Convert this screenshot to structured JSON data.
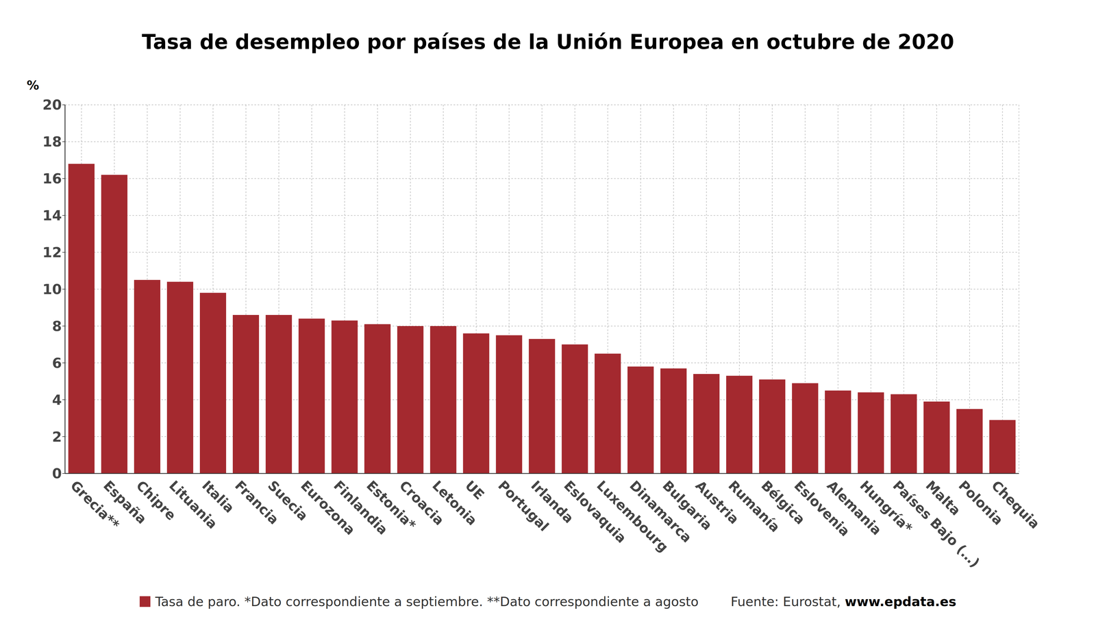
{
  "chart_data": {
    "type": "bar",
    "title": "Tasa de desempleo por países de la Unión Europea en octubre de 2020",
    "y_label": "%",
    "categories": [
      "Grecia**",
      "España",
      "Chipre",
      "Lituania",
      "Italia",
      "Francia",
      "Suecia",
      "Eurozona",
      "Finlandia",
      "Estonia*",
      "Croacia",
      "Letonia",
      "UE",
      "Portugal",
      "Irlanda",
      "Eslovaquia",
      "Luxembourg",
      "Dinamarca",
      "Bulgaria",
      "Austria",
      "Rumanía",
      "Bélgica",
      "Eslovenia",
      "Alemania",
      "Hungría*",
      "Países Bajo (…)",
      "Malta",
      "Polonia",
      "Chequia"
    ],
    "series": [
      {
        "name": "Tasa de paro. *Dato correspondiente a septiembre. **Dato correspondiente a agosto",
        "color": "#a4292f",
        "values": [
          16.8,
          16.2,
          10.5,
          10.4,
          9.8,
          8.6,
          8.6,
          8.4,
          8.3,
          8.1,
          8.0,
          8.0,
          7.6,
          7.5,
          7.3,
          7.0,
          6.5,
          5.8,
          5.7,
          5.4,
          5.3,
          5.1,
          4.9,
          4.5,
          4.4,
          4.3,
          3.9,
          3.5,
          2.9
        ]
      }
    ],
    "source": "Fuente: Eurostat, www.epdata.es",
    "ylim": [
      0,
      20
    ],
    "yticks": [
      0,
      2,
      4,
      6,
      8,
      10,
      12,
      14,
      16,
      18,
      20
    ],
    "grid": true,
    "legend": "bottom"
  }
}
